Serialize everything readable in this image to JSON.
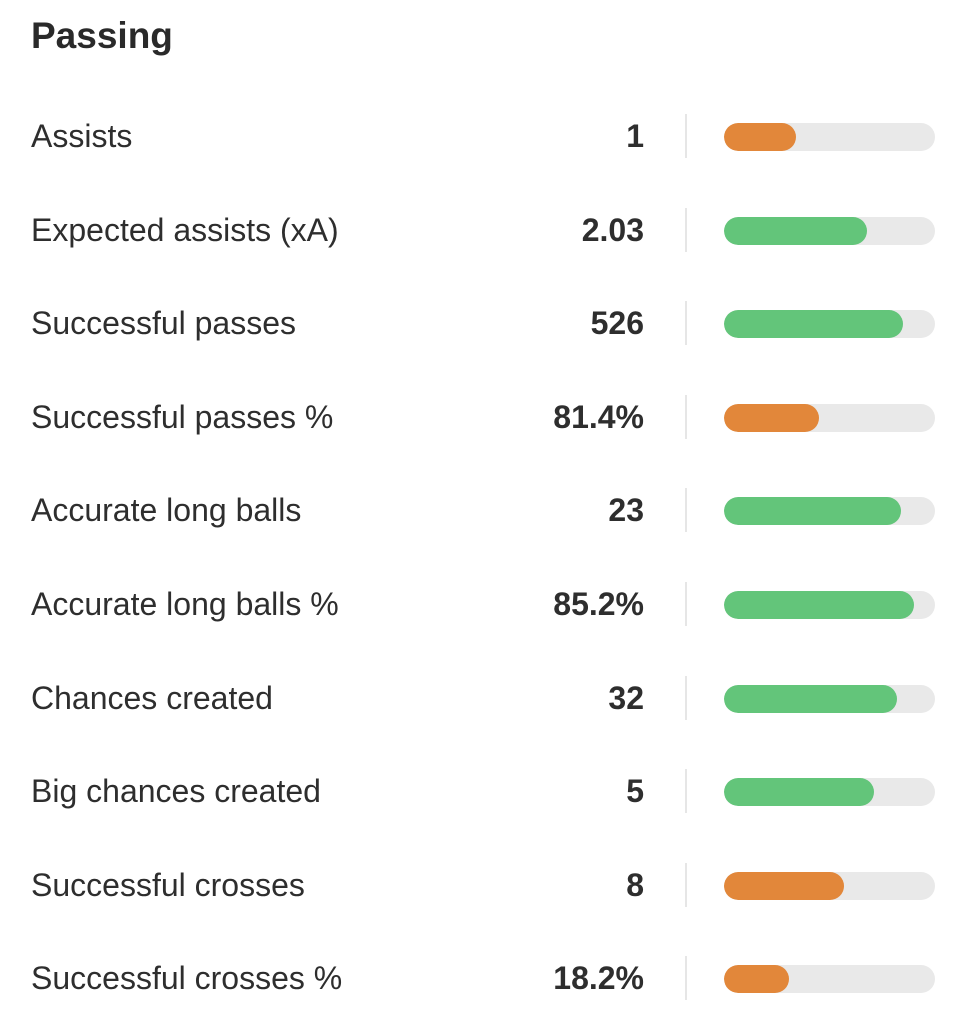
{
  "section": {
    "title": "Passing"
  },
  "colors": {
    "good": "#63c57a",
    "poor": "#e2873a",
    "track": "#e9e9e9"
  },
  "stats": [
    {
      "label": "Assists",
      "value": "1",
      "rating": "poor",
      "fill_fraction": 0.34
    },
    {
      "label": "Expected assists (xA)",
      "value": "2.03",
      "rating": "good",
      "fill_fraction": 0.68
    },
    {
      "label": "Successful passes",
      "value": "526",
      "rating": "good",
      "fill_fraction": 0.85
    },
    {
      "label": "Successful passes %",
      "value": "81.4%",
      "rating": "poor",
      "fill_fraction": 0.45
    },
    {
      "label": "Accurate long balls",
      "value": "23",
      "rating": "good",
      "fill_fraction": 0.84
    },
    {
      "label": "Accurate long balls %",
      "value": "85.2%",
      "rating": "good",
      "fill_fraction": 0.9
    },
    {
      "label": "Chances created",
      "value": "32",
      "rating": "good",
      "fill_fraction": 0.82
    },
    {
      "label": "Big chances created",
      "value": "5",
      "rating": "good",
      "fill_fraction": 0.71
    },
    {
      "label": "Successful crosses",
      "value": "8",
      "rating": "poor",
      "fill_fraction": 0.57
    },
    {
      "label": "Successful crosses %",
      "value": "18.2%",
      "rating": "poor",
      "fill_fraction": 0.31
    }
  ]
}
